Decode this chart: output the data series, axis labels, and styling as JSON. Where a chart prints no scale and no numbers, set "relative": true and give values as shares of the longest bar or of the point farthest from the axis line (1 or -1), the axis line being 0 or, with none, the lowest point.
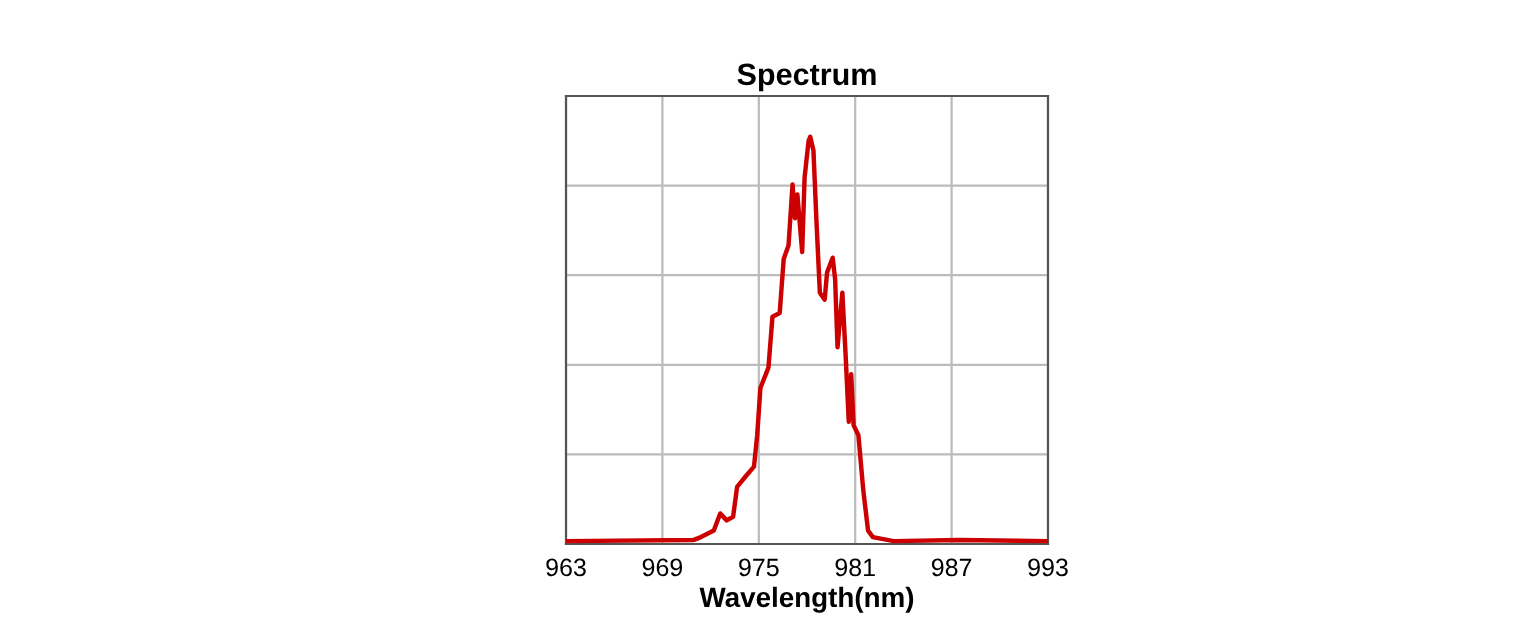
{
  "chart_data": {
    "type": "line",
    "title": "Spectrum",
    "xlabel": "Wavelength(nm)",
    "relative": true,
    "xlim": [
      963,
      993
    ],
    "xticks": [
      963,
      969,
      975,
      981,
      987,
      993
    ],
    "grid": true,
    "marker": "none",
    "line_style": "solid",
    "series": [
      {
        "color": "#cc0000",
        "x": [
          963,
          970.96,
          971.4,
          972.2,
          972.6,
          973.0,
          973.4,
          973.65,
          974.2,
          974.7,
          974.9,
          975.1,
          975.6,
          975.85,
          976.3,
          976.55,
          976.85,
          977.1,
          977.25,
          977.4,
          977.7,
          977.85,
          978.1,
          978.2,
          978.4,
          978.6,
          978.8,
          979.1,
          979.25,
          979.6,
          979.75,
          979.9,
          980.2,
          980.4,
          980.6,
          980.75,
          980.9,
          981.2,
          981.5,
          981.8,
          982.1,
          983.4,
          987.5,
          993
        ],
        "values": [
          0.007,
          0.01,
          0.017,
          0.033,
          0.075,
          0.058,
          0.067,
          0.14,
          0.167,
          0.19,
          0.267,
          0.383,
          0.433,
          0.558,
          0.567,
          0.7,
          0.733,
          0.883,
          0.8,
          0.858,
          0.717,
          0.9,
          0.99,
          1.0,
          0.967,
          0.783,
          0.617,
          0.6,
          0.667,
          0.703,
          0.65,
          0.483,
          0.617,
          0.467,
          0.3,
          0.417,
          0.292,
          0.267,
          0.133,
          0.033,
          0.017,
          0.007,
          0.01,
          0.007
        ]
      }
    ]
  }
}
